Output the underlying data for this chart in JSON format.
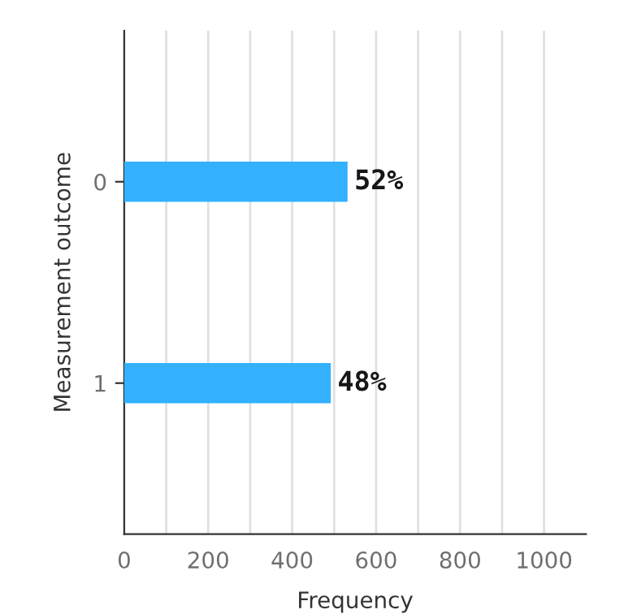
{
  "chart_data": {
    "type": "bar",
    "orientation": "horizontal",
    "xlabel": "Frequency",
    "ylabel": "Measurement outcome",
    "categories": [
      "0",
      "1"
    ],
    "values": [
      532,
      492
    ],
    "color": "#33b1ff",
    "annotations": [
      {
        "text": "52%",
        "x": 532,
        "y": "0"
      },
      {
        "text": "48%",
        "x": 492,
        "y": "1"
      }
    ],
    "xlim": [
      0,
      1100
    ],
    "xticks": [
      0,
      {
        "value": 100,
        "label": null
      },
      200,
      {
        "value": 300,
        "label": null
      },
      400,
      {
        "value": 500,
        "label": null
      },
      600,
      {
        "value": 700,
        "label": null
      },
      800,
      {
        "value": 900,
        "label": null
      },
      1000
    ],
    "grid": "x",
    "legend": false
  }
}
